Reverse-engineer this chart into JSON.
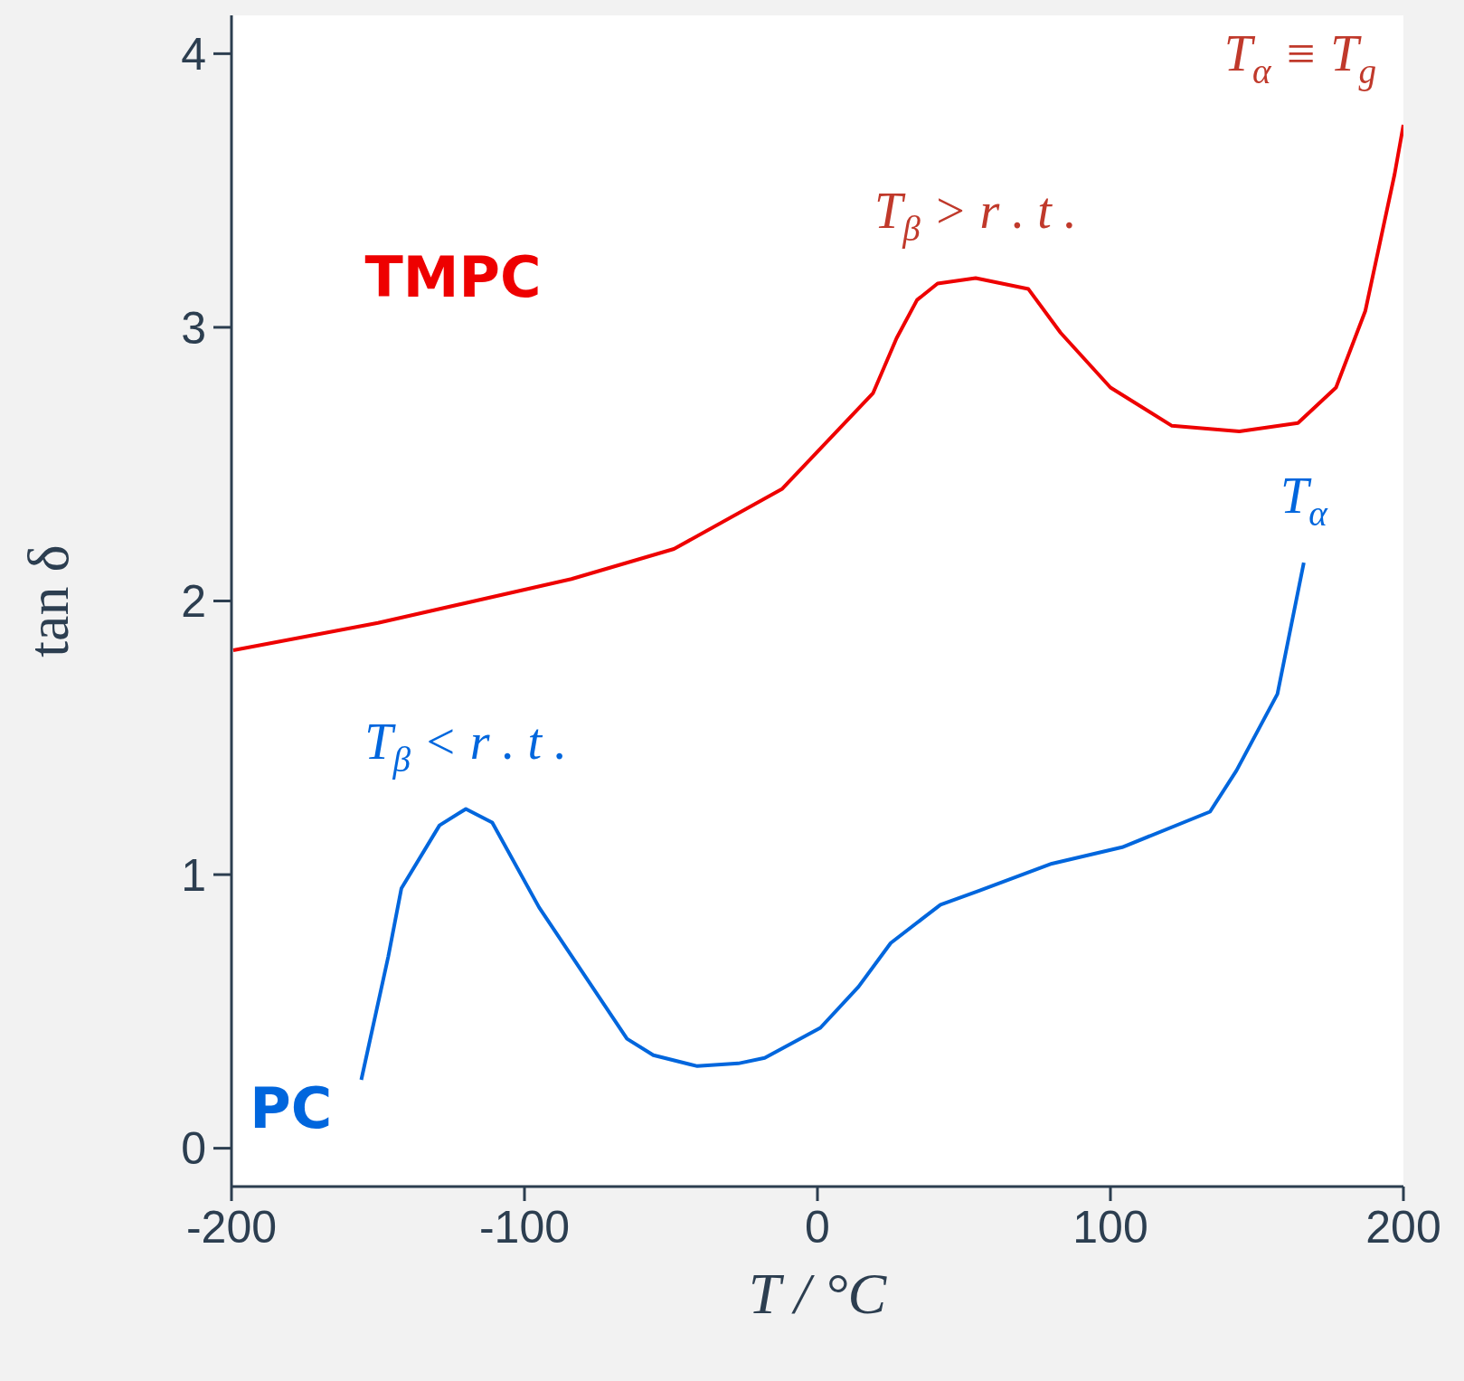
{
  "chart_data": {
    "type": "line",
    "xlabel": "T / °C",
    "ylabel": "tan δ",
    "xlim": [
      -200,
      200
    ],
    "xticks": [
      -200,
      -100,
      0,
      100,
      200
    ],
    "ylim": [
      -0.14,
      4.14
    ],
    "yticks": [
      0,
      1,
      2,
      3,
      4
    ],
    "marker": "none",
    "line_style": "solid",
    "series": [
      {
        "name": "TMPC",
        "color": "#ee0000",
        "x": [
          -199.4,
          -150,
          -84,
          -49,
          -12,
          19,
          27,
          34,
          41,
          54,
          72,
          83,
          100,
          121,
          144,
          164,
          177,
          187,
          197,
          200
        ],
        "values": [
          1.82,
          1.92,
          2.08,
          2.19,
          2.41,
          2.76,
          2.96,
          3.1,
          3.16,
          3.18,
          3.14,
          2.98,
          2.78,
          2.64,
          2.62,
          2.65,
          2.78,
          3.06,
          3.56,
          3.74
        ]
      },
      {
        "name": "PC",
        "color": "#0066dd",
        "x": [
          -155.7,
          -146.5,
          -142,
          -129,
          -120,
          -111,
          -95,
          -65,
          -56,
          -41,
          -27,
          -18,
          1,
          14,
          25,
          42,
          55,
          80,
          104,
          134,
          143,
          157,
          166
        ],
        "values": [
          0.25,
          0.7,
          0.95,
          1.18,
          1.24,
          1.19,
          0.88,
          0.4,
          0.34,
          0.3,
          0.31,
          0.33,
          0.44,
          0.59,
          0.75,
          0.89,
          0.94,
          1.04,
          1.1,
          1.23,
          1.38,
          1.66,
          2.14
        ]
      }
    ],
    "annotations": [
      {
        "text": "T$_{β}$ > r . t .",
        "x": 54,
        "y": 3.18
      },
      {
        "text": "T$_{β}$ < r . t .",
        "x": -120,
        "y": 1.24
      },
      {
        "text": "T$_{α}$",
        "x": 166,
        "y": 2.14
      },
      {
        "text": "T$_{α}$ ≡ T$_{g}$",
        "x": 200,
        "y": 3.74
      }
    ]
  }
}
